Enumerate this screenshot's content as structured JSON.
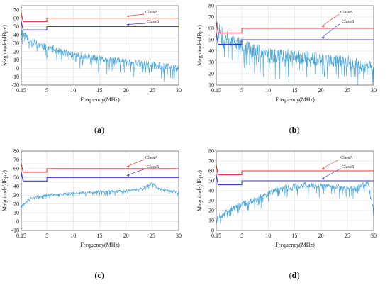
{
  "chart_data": [
    {
      "panel": "(a)",
      "caption_open": "(",
      "caption_letter": "a",
      "caption_close": ")",
      "type": "line",
      "xlabel": "Frequency(MHz)",
      "ylabel": "Magnitude(dBµv)",
      "x_ticks": [
        "0.15",
        "5",
        "10",
        "15",
        "20",
        "25",
        "30"
      ],
      "y_ticks": [
        "-20",
        "-10",
        "0",
        "10",
        "20",
        "30",
        "40",
        "50",
        "60",
        "70"
      ],
      "xlim": [
        0.15,
        30
      ],
      "ylim": [
        -20,
        75
      ],
      "grid": true,
      "limits": [
        {
          "name": "ClassA",
          "color": "#e83a3a",
          "points": [
            [
              0.15,
              66
            ],
            [
              0.5,
              56
            ],
            [
              5,
              56
            ],
            [
              5,
              60
            ],
            [
              30,
              60
            ]
          ]
        },
        {
          "name": "ClassB",
          "color": "#3a3ad6",
          "points": [
            [
              0.15,
              56
            ],
            [
              0.5,
              46
            ],
            [
              5,
              46
            ],
            [
              5,
              50
            ],
            [
              30,
              50
            ]
          ]
        }
      ],
      "measured": {
        "color": "#4aa7d8",
        "trend": [
          [
            0.15,
            44
          ],
          [
            2,
            32
          ],
          [
            5,
            25
          ],
          [
            10,
            16
          ],
          [
            15,
            11
          ],
          [
            20,
            8
          ],
          [
            25,
            4
          ],
          [
            30,
            0
          ]
        ],
        "amplitude": 9,
        "seed": 11
      }
    },
    {
      "panel": "(b)",
      "caption_open": "(",
      "caption_letter": "b",
      "caption_close": ")",
      "type": "line",
      "xlabel": "Frequency(MHz)",
      "ylabel": "Magnitude(dBµv)",
      "x_ticks": [
        "0.15",
        "5",
        "10",
        "15",
        "20",
        "25",
        "30"
      ],
      "y_ticks": [
        "10",
        "20",
        "30",
        "40",
        "50",
        "60",
        "70",
        "80"
      ],
      "xlim": [
        0.15,
        30
      ],
      "ylim": [
        10,
        80
      ],
      "grid": true,
      "limits": [
        {
          "name": "ClassA",
          "color": "#e83a3a",
          "points": [
            [
              0.15,
              66
            ],
            [
              0.5,
              56
            ],
            [
              5,
              56
            ],
            [
              5,
              60
            ],
            [
              30,
              60
            ]
          ]
        },
        {
          "name": "ClassB",
          "color": "#3a3ad6",
          "points": [
            [
              0.15,
              56
            ],
            [
              0.5,
              46
            ],
            [
              5,
              46
            ],
            [
              5,
              50
            ],
            [
              30,
              50
            ]
          ]
        }
      ],
      "measured": {
        "color": "#4aa7d8",
        "trend": [
          [
            0.15,
            62
          ],
          [
            2,
            52
          ],
          [
            5,
            45
          ],
          [
            10,
            38
          ],
          [
            15,
            35
          ],
          [
            20,
            33
          ],
          [
            25,
            30
          ],
          [
            30,
            25
          ]
        ],
        "amplitude": 12,
        "seed": 23
      }
    },
    {
      "panel": "(c)",
      "caption_open": "(",
      "caption_letter": "c",
      "caption_close": ")",
      "type": "line",
      "xlabel": "Frequency(MHz)",
      "ylabel": "Magnitude(dBµv)",
      "x_ticks": [
        "0.15",
        "5",
        "10",
        "15",
        "20",
        "25",
        "30"
      ],
      "y_ticks": [
        "-10",
        "0",
        "10",
        "20",
        "30",
        "40",
        "50",
        "60",
        "70",
        "80"
      ],
      "xlim": [
        0.15,
        30
      ],
      "ylim": [
        -10,
        80
      ],
      "grid": true,
      "limits": [
        {
          "name": "ClassA",
          "color": "#e83a3a",
          "points": [
            [
              0.15,
              66
            ],
            [
              0.5,
              56
            ],
            [
              5,
              56
            ],
            [
              5,
              60
            ],
            [
              30,
              60
            ]
          ]
        },
        {
          "name": "ClassB",
          "color": "#3a3ad6",
          "points": [
            [
              0.15,
              56
            ],
            [
              0.5,
              46
            ],
            [
              5,
              46
            ],
            [
              5,
              50
            ],
            [
              30,
              50
            ]
          ]
        }
      ],
      "measured": {
        "color": "#4aa7d8",
        "trend": [
          [
            0.15,
            18
          ],
          [
            2,
            27
          ],
          [
            5,
            30
          ],
          [
            10,
            32
          ],
          [
            15,
            34
          ],
          [
            20,
            35
          ],
          [
            23,
            37
          ],
          [
            25,
            44
          ],
          [
            26,
            38
          ],
          [
            30,
            33
          ]
        ],
        "amplitude": 3,
        "seed": 37
      }
    },
    {
      "panel": "(d)",
      "caption_open": "(",
      "caption_letter": "d",
      "caption_close": ")",
      "type": "line",
      "xlabel": "Frequency(MHz)",
      "ylabel": "Magnitude(dBµv)",
      "x_ticks": [
        "0.15",
        "5",
        "10",
        "15",
        "20",
        "25",
        "30"
      ],
      "y_ticks": [
        "0",
        "10",
        "20",
        "30",
        "40",
        "50",
        "60",
        "70",
        "80"
      ],
      "xlim": [
        0.15,
        30
      ],
      "ylim": [
        0,
        80
      ],
      "grid": true,
      "limits": [
        {
          "name": "ClassA",
          "color": "#e83a3a",
          "points": [
            [
              0.15,
              66
            ],
            [
              0.5,
              56
            ],
            [
              5,
              56
            ],
            [
              5,
              60
            ],
            [
              30,
              60
            ]
          ]
        },
        {
          "name": "ClassB",
          "color": "#3a3ad6",
          "points": [
            [
              0.15,
              56
            ],
            [
              0.5,
              46
            ],
            [
              5,
              46
            ],
            [
              5,
              50
            ],
            [
              30,
              50
            ]
          ]
        }
      ],
      "measured": {
        "color": "#4aa7d8",
        "trend": [
          [
            0.15,
            12
          ],
          [
            3,
            22
          ],
          [
            8,
            32
          ],
          [
            12,
            42
          ],
          [
            17,
            46
          ],
          [
            22,
            44
          ],
          [
            26,
            42
          ],
          [
            29,
            48
          ],
          [
            30,
            20
          ]
        ],
        "amplitude": 6,
        "seed": 53
      }
    }
  ]
}
